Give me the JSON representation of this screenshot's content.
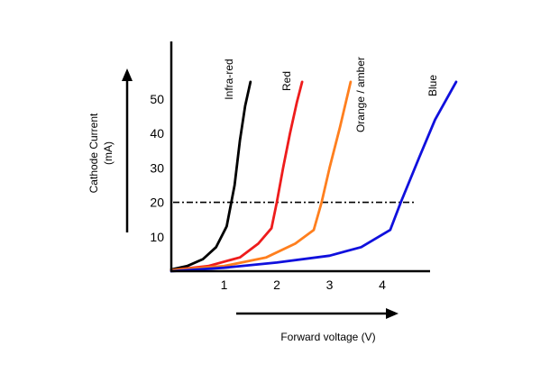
{
  "chart_data": {
    "type": "line",
    "xlabel": "Forward voltage (V)",
    "ylabel_lines": [
      "Cathode Current",
      "(mA)"
    ],
    "x_ticks": [
      1,
      2,
      3,
      4
    ],
    "y_ticks": [
      10,
      20,
      30,
      40,
      50
    ],
    "xlim": [
      0,
      5
    ],
    "ylim": [
      0,
      60
    ],
    "grid": false,
    "reference_line": {
      "y": 20,
      "style": "dash-dot"
    },
    "series": [
      {
        "name": "Infra-red",
        "color": "#000000",
        "x": [
          0,
          0.3,
          0.6,
          0.85,
          1.05,
          1.2,
          1.3,
          1.4,
          1.5
        ],
        "y": [
          0.5,
          1.5,
          3.5,
          7,
          13,
          25,
          38,
          48,
          55
        ]
      },
      {
        "name": "Red",
        "color": "#ee1c1c",
        "x": [
          0,
          0.7,
          1.3,
          1.65,
          1.9,
          2.0,
          2.12,
          2.25,
          2.38,
          2.48
        ],
        "y": [
          0.3,
          1.5,
          4,
          8,
          12.5,
          20,
          30,
          40,
          49,
          55
        ]
      },
      {
        "name": "Orange / amber",
        "color": "#ff7f1e",
        "x": [
          0,
          1.0,
          1.8,
          2.35,
          2.7,
          2.85,
          3.0,
          3.2,
          3.4
        ],
        "y": [
          0.3,
          1.5,
          4,
          8,
          12,
          20,
          30,
          42,
          55
        ]
      },
      {
        "name": "Blue",
        "color": "#1010dd",
        "x": [
          0,
          1.0,
          2.0,
          3.0,
          3.6,
          4.15,
          4.35,
          4.7,
          5.0,
          5.4
        ],
        "y": [
          0,
          1,
          2.5,
          4.5,
          7,
          12,
          20,
          33,
          44,
          55
        ]
      }
    ]
  }
}
